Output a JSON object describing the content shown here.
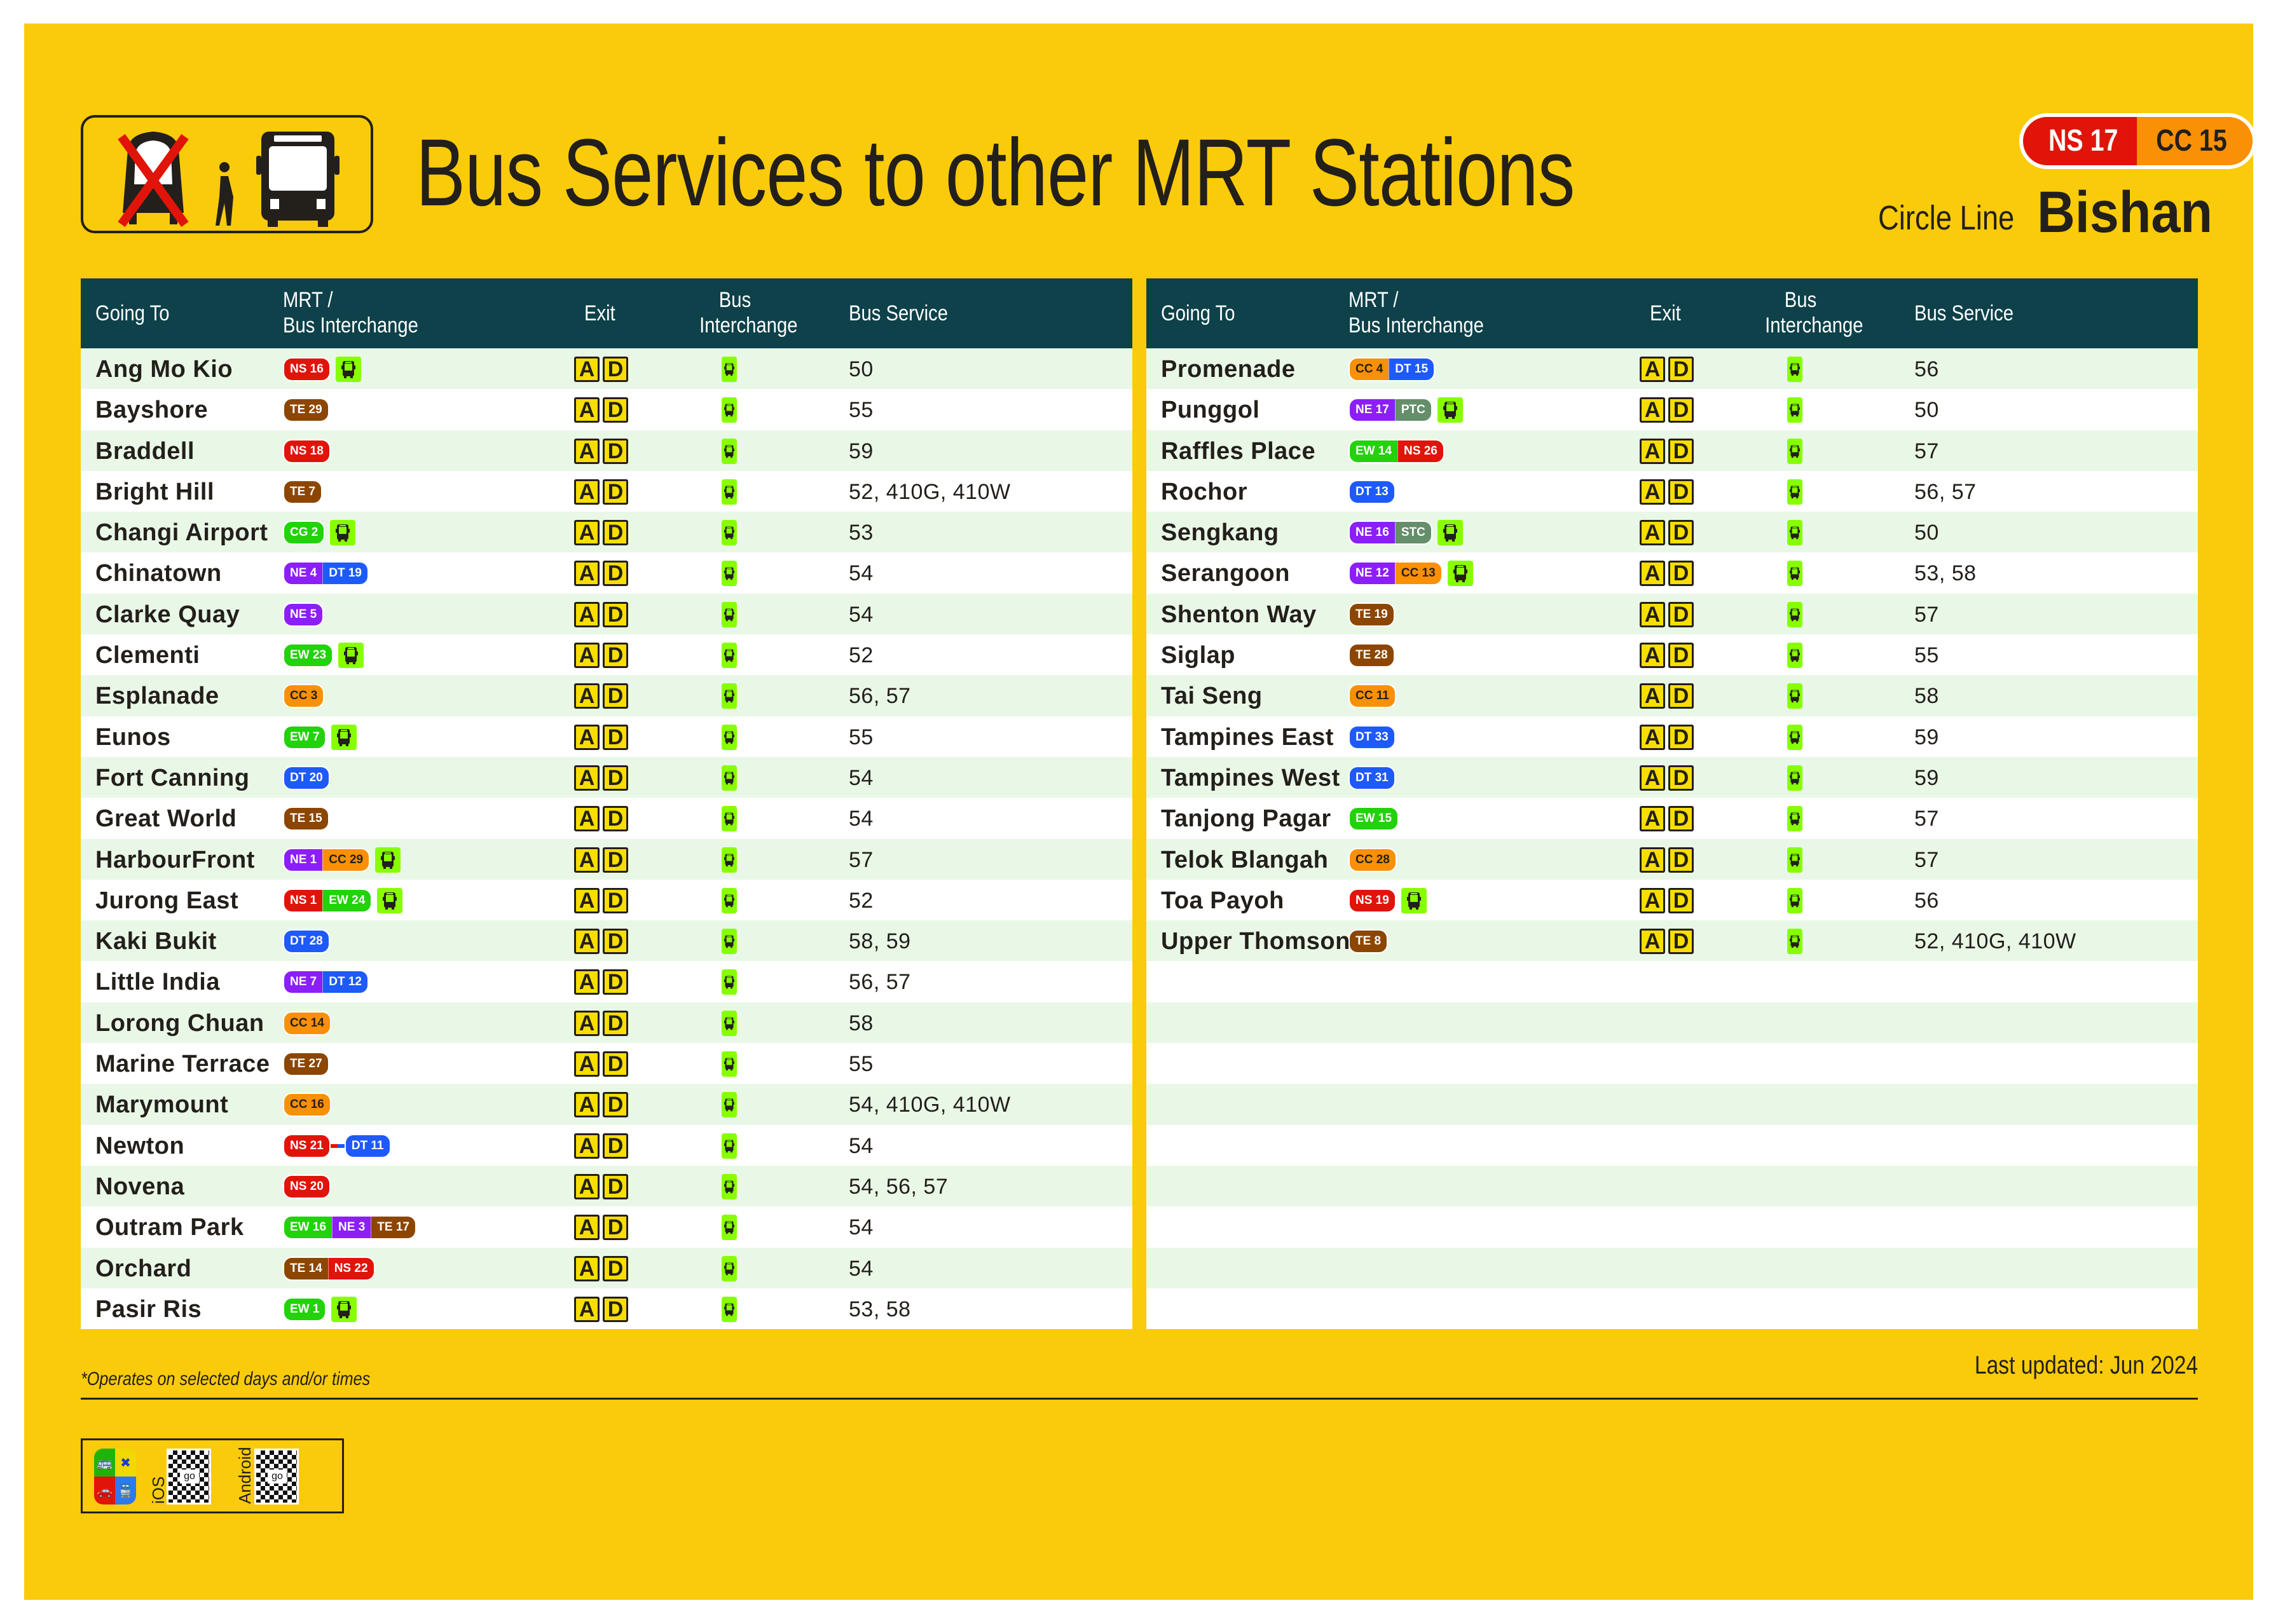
{
  "header": {
    "title": "Bus Services to other MRT Stations",
    "station_codes": [
      {
        "code": "NS 17",
        "color": "#E1140A",
        "text_color": "#FFFFFF"
      },
      {
        "code": "CC 15",
        "color": "#FA9005",
        "text_color": "#231F1A"
      }
    ],
    "line_name": "Circle Line",
    "station_name": "Bishan",
    "logo_icons": [
      "train-crossed-out-icon",
      "walking-person-icon",
      "bus-icon"
    ]
  },
  "columns": {
    "going_to": "Going To",
    "mrt_line1": "MRT /",
    "mrt_line2": "Bus Interchange",
    "exit": "Exit",
    "bus_int_line1": "Bus",
    "bus_int_line2": "Interchange",
    "bus_service": "Bus Service"
  },
  "line_colors": {
    "NS": "#E1140A",
    "EW": "#22D20A",
    "CG": "#22D20A",
    "NE": "#8C1EFA",
    "CC": "#FA9005",
    "DT": "#1E5AFA",
    "TE": "#8C4600",
    "PTC": "#658E6A",
    "STC": "#658E6A",
    "bus_interchange": "#87FF00",
    "exit_box": "#F8DE00"
  },
  "left_table": [
    {
      "name": "Ang Mo Kio",
      "codes": [
        "NS 16"
      ],
      "bus_int": true,
      "exits": [
        "A",
        "D"
      ],
      "services": "50"
    },
    {
      "name": "Bayshore",
      "codes": [
        "TE 29"
      ],
      "bus_int": false,
      "exits": [
        "A",
        "D"
      ],
      "services": "55"
    },
    {
      "name": "Braddell",
      "codes": [
        "NS 18"
      ],
      "bus_int": false,
      "exits": [
        "A",
        "D"
      ],
      "services": "59"
    },
    {
      "name": "Bright Hill",
      "codes": [
        "TE 7"
      ],
      "bus_int": false,
      "exits": [
        "A",
        "D"
      ],
      "services": "52, 410G, 410W"
    },
    {
      "name": "Changi Airport",
      "codes": [
        "CG 2"
      ],
      "bus_int": true,
      "exits": [
        "A",
        "D"
      ],
      "services": "53"
    },
    {
      "name": "Chinatown",
      "codes": [
        "NE 4",
        "DT 19"
      ],
      "bus_int": false,
      "exits": [
        "A",
        "D"
      ],
      "services": "54"
    },
    {
      "name": "Clarke Quay",
      "codes": [
        "NE 5"
      ],
      "bus_int": false,
      "exits": [
        "A",
        "D"
      ],
      "services": "54"
    },
    {
      "name": "Clementi",
      "codes": [
        "EW 23"
      ],
      "bus_int": true,
      "exits": [
        "A",
        "D"
      ],
      "services": "52"
    },
    {
      "name": "Esplanade",
      "codes": [
        "CC 3"
      ],
      "bus_int": false,
      "exits": [
        "A",
        "D"
      ],
      "services": "56, 57"
    },
    {
      "name": "Eunos",
      "codes": [
        "EW 7"
      ],
      "bus_int": true,
      "exits": [
        "A",
        "D"
      ],
      "services": "55"
    },
    {
      "name": "Fort Canning",
      "codes": [
        "DT 20"
      ],
      "bus_int": false,
      "exits": [
        "A",
        "D"
      ],
      "services": "54"
    },
    {
      "name": "Great World",
      "codes": [
        "TE 15"
      ],
      "bus_int": false,
      "exits": [
        "A",
        "D"
      ],
      "services": "54"
    },
    {
      "name": "HarbourFront",
      "codes": [
        "NE 1",
        "CC 29"
      ],
      "bus_int": true,
      "exits": [
        "A",
        "D"
      ],
      "services": "57"
    },
    {
      "name": "Jurong East",
      "codes": [
        "NS 1",
        "EW 24"
      ],
      "bus_int": true,
      "exits": [
        "A",
        "D"
      ],
      "services": "52"
    },
    {
      "name": "Kaki Bukit",
      "codes": [
        "DT 28"
      ],
      "bus_int": false,
      "exits": [
        "A",
        "D"
      ],
      "services": "58, 59"
    },
    {
      "name": "Little India",
      "codes": [
        "NE 7",
        "DT 12"
      ],
      "bus_int": false,
      "exits": [
        "A",
        "D"
      ],
      "services": "56, 57"
    },
    {
      "name": "Lorong Chuan",
      "codes": [
        "CC 14"
      ],
      "bus_int": false,
      "exits": [
        "A",
        "D"
      ],
      "services": "58"
    },
    {
      "name": "Marine Terrace",
      "codes": [
        "TE 27"
      ],
      "bus_int": false,
      "exits": [
        "A",
        "D"
      ],
      "services": "55"
    },
    {
      "name": "Marymount",
      "codes": [
        "CC 16"
      ],
      "bus_int": false,
      "exits": [
        "A",
        "D"
      ],
      "services": "54, 410G, 410W"
    },
    {
      "name": "Newton",
      "codes": [
        "NS 21",
        "DT 11"
      ],
      "linked": true,
      "bus_int": false,
      "exits": [
        "A",
        "D"
      ],
      "services": "54"
    },
    {
      "name": "Novena",
      "codes": [
        "NS 20"
      ],
      "bus_int": false,
      "exits": [
        "A",
        "D"
      ],
      "services": "54, 56, 57"
    },
    {
      "name": "Outram Park",
      "codes": [
        "EW 16",
        "NE 3",
        "TE 17"
      ],
      "bus_int": false,
      "exits": [
        "A",
        "D"
      ],
      "services": "54"
    },
    {
      "name": "Orchard",
      "codes": [
        "TE 14",
        "NS 22"
      ],
      "bus_int": false,
      "exits": [
        "A",
        "D"
      ],
      "services": "54"
    },
    {
      "name": "Pasir Ris",
      "codes": [
        "EW 1"
      ],
      "bus_int": true,
      "exits": [
        "A",
        "D"
      ],
      "services": "53, 58"
    }
  ],
  "right_table": [
    {
      "name": "Promenade",
      "codes": [
        "CC 4",
        "DT 15"
      ],
      "bus_int": false,
      "exits": [
        "A",
        "D"
      ],
      "services": "56"
    },
    {
      "name": "Punggol",
      "codes": [
        "NE 17",
        "PTC"
      ],
      "bus_int": true,
      "exits": [
        "A",
        "D"
      ],
      "services": "50"
    },
    {
      "name": "Raffles Place",
      "codes": [
        "EW 14",
        "NS 26"
      ],
      "bus_int": false,
      "exits": [
        "A",
        "D"
      ],
      "services": "57"
    },
    {
      "name": "Rochor",
      "codes": [
        "DT 13"
      ],
      "bus_int": false,
      "exits": [
        "A",
        "D"
      ],
      "services": "56, 57"
    },
    {
      "name": "Sengkang",
      "codes": [
        "NE 16",
        "STC"
      ],
      "bus_int": true,
      "exits": [
        "A",
        "D"
      ],
      "services": "50"
    },
    {
      "name": "Serangoon",
      "codes": [
        "NE 12",
        "CC 13"
      ],
      "bus_int": true,
      "exits": [
        "A",
        "D"
      ],
      "services": "53, 58"
    },
    {
      "name": "Shenton Way",
      "codes": [
        "TE 19"
      ],
      "bus_int": false,
      "exits": [
        "A",
        "D"
      ],
      "services": "57"
    },
    {
      "name": "Siglap",
      "codes": [
        "TE 28"
      ],
      "bus_int": false,
      "exits": [
        "A",
        "D"
      ],
      "services": "55"
    },
    {
      "name": "Tai Seng",
      "codes": [
        "CC 11"
      ],
      "bus_int": false,
      "exits": [
        "A",
        "D"
      ],
      "services": "58"
    },
    {
      "name": "Tampines East",
      "codes": [
        "DT 33"
      ],
      "bus_int": false,
      "exits": [
        "A",
        "D"
      ],
      "services": "59"
    },
    {
      "name": "Tampines West",
      "codes": [
        "DT 31"
      ],
      "bus_int": false,
      "exits": [
        "A",
        "D"
      ],
      "services": "59"
    },
    {
      "name": "Tanjong Pagar",
      "codes": [
        "EW 15"
      ],
      "bus_int": false,
      "exits": [
        "A",
        "D"
      ],
      "services": "57"
    },
    {
      "name": "Telok Blangah",
      "codes": [
        "CC 28"
      ],
      "bus_int": false,
      "exits": [
        "A",
        "D"
      ],
      "services": "57"
    },
    {
      "name": "Toa Payoh",
      "codes": [
        "NS 19"
      ],
      "bus_int": true,
      "exits": [
        "A",
        "D"
      ],
      "services": "56"
    },
    {
      "name": "Upper Thomson",
      "codes": [
        "TE 8"
      ],
      "bus_int": false,
      "exits": [
        "A",
        "D"
      ],
      "services": "52, 410G, 410W"
    }
  ],
  "right_table_empty_rows": 9,
  "footer": {
    "footnote": "*Operates on selected days and/or times",
    "last_updated": "Last updated: Jun 2024",
    "qr_labels": [
      "iOS",
      "Android"
    ],
    "qr_center_text": "go"
  }
}
